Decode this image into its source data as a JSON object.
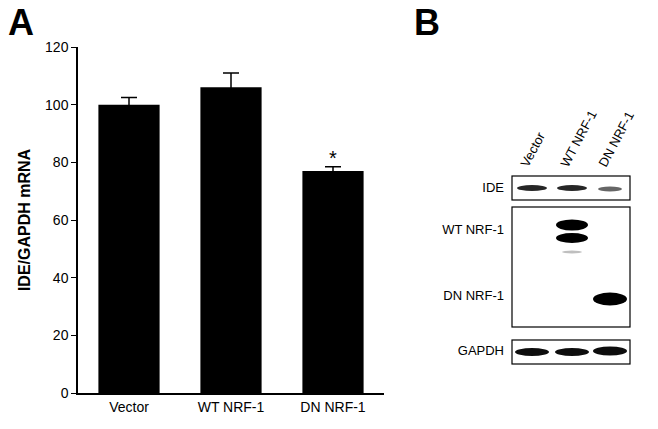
{
  "panel_labels": [
    "A",
    "B"
  ],
  "chart_data": {
    "type": "bar",
    "categories": [
      "Vector",
      "WT NRF-1",
      "DN NRF-1"
    ],
    "values": [
      100,
      106,
      77
    ],
    "errors": [
      2.5,
      5,
      1.5
    ],
    "color": "#000000",
    "y_label": "IDE/GAPDH mRNA",
    "ylim": [
      0,
      120
    ],
    "yticks": [
      0,
      20,
      40,
      60,
      80,
      100,
      120
    ],
    "grid": false,
    "annotations": [
      {
        "text": "*",
        "category": "DN NRF-1"
      }
    ]
  },
  "blot": {
    "lanes": [
      "Vector",
      "WT NRF-1",
      "DN NRF-1"
    ],
    "rows": [
      {
        "label": "IDE"
      },
      {
        "label": "WT NRF-1"
      },
      {
        "label": "DN NRF-1"
      },
      {
        "label": "GAPDH"
      }
    ]
  }
}
